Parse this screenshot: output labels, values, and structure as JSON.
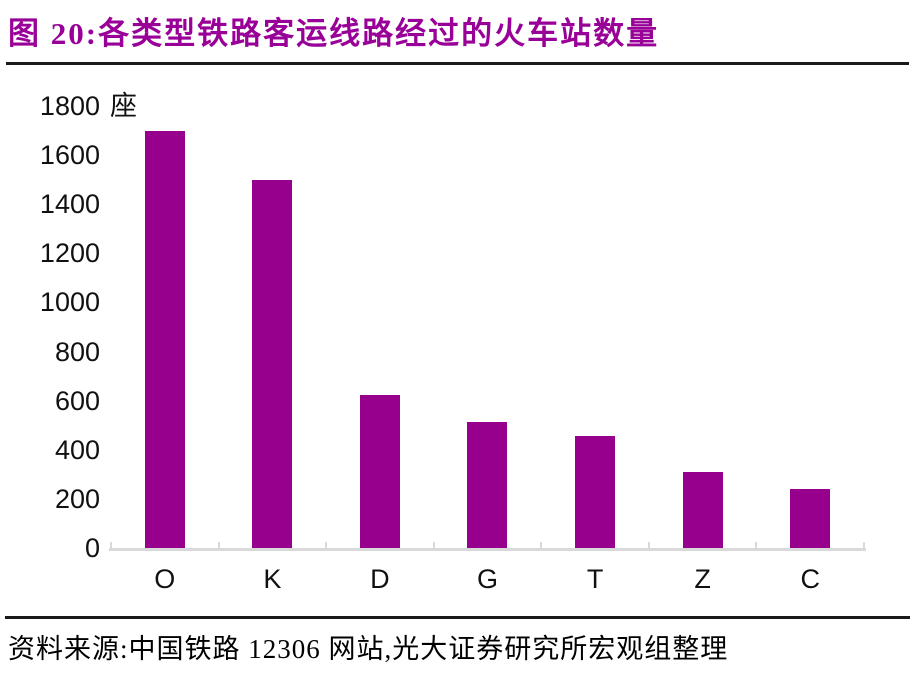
{
  "header": {
    "title": "图 20:各类型铁路客运线路经过的火车站数量"
  },
  "chart_data": {
    "type": "bar",
    "title": "各类型铁路客运线路经过的火车站数量",
    "unit": "座",
    "categories": [
      "O",
      "K",
      "D",
      "G",
      "T",
      "Z",
      "C"
    ],
    "values": [
      1700,
      1500,
      625,
      515,
      455,
      310,
      240
    ],
    "xlabel": "",
    "ylabel": "座",
    "ylim": [
      0,
      1800
    ],
    "ytick_step": 200,
    "grid": false,
    "legend": false
  },
  "source": {
    "text": "资料来源:中国铁路 12306 网站,光大证券研究所宏观组整理"
  },
  "colors": {
    "bar": "#97008C",
    "title": "#990098",
    "axis": "#D9D9D9",
    "text": "#111111",
    "rule": "#1A1A1A"
  }
}
